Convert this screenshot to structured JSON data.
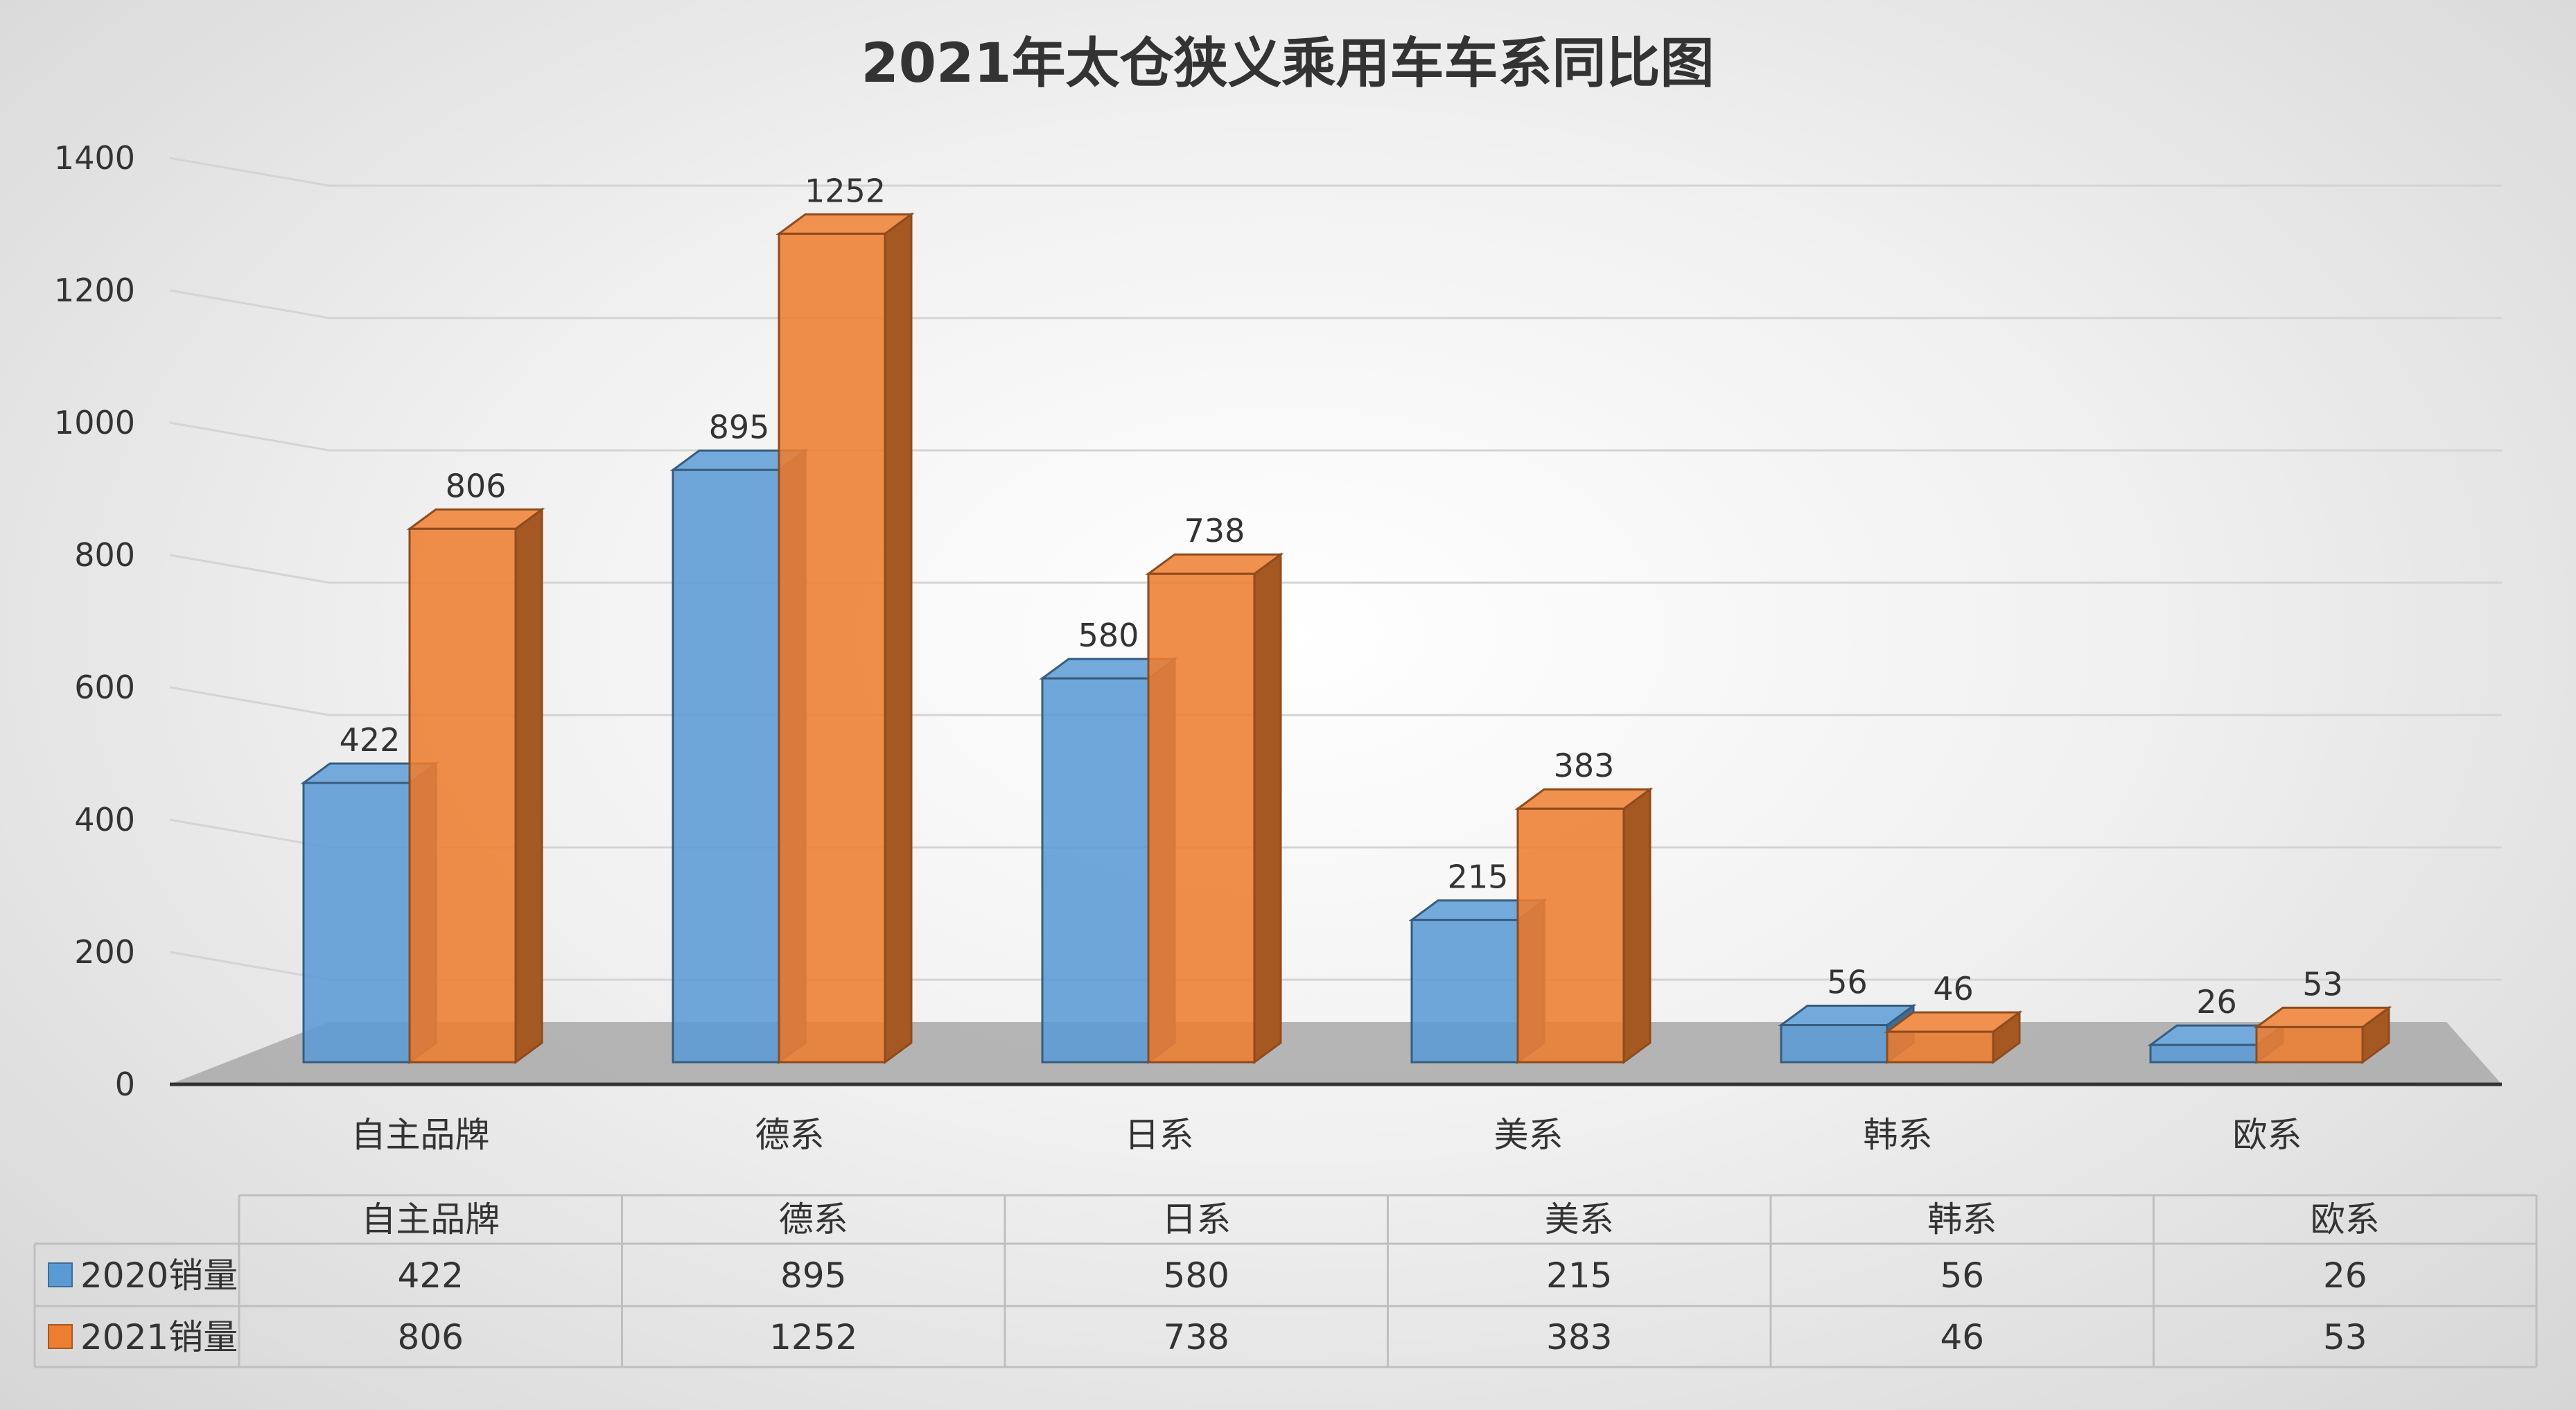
{
  "chart_data": {
    "type": "bar",
    "title": "2021年太仓狭义乘用车车系同比图",
    "categories": [
      "自主品牌",
      "德系",
      "日系",
      "美系",
      "韩系",
      "欧系"
    ],
    "series": [
      {
        "name": "2020销量",
        "values": [
          422,
          895,
          580,
          215,
          56,
          26
        ],
        "color": "#5B9BD5"
      },
      {
        "name": "2021销量",
        "values": [
          806,
          1252,
          738,
          383,
          46,
          53
        ],
        "color": "#ED7D31"
      }
    ],
    "ylim": [
      0,
      1400
    ],
    "yticks": [
      0,
      200,
      400,
      600,
      800,
      1000,
      1200,
      1400
    ],
    "xlabel": "",
    "ylabel": "",
    "grid": true,
    "data_table": true,
    "style": "3d-clustered-column"
  }
}
